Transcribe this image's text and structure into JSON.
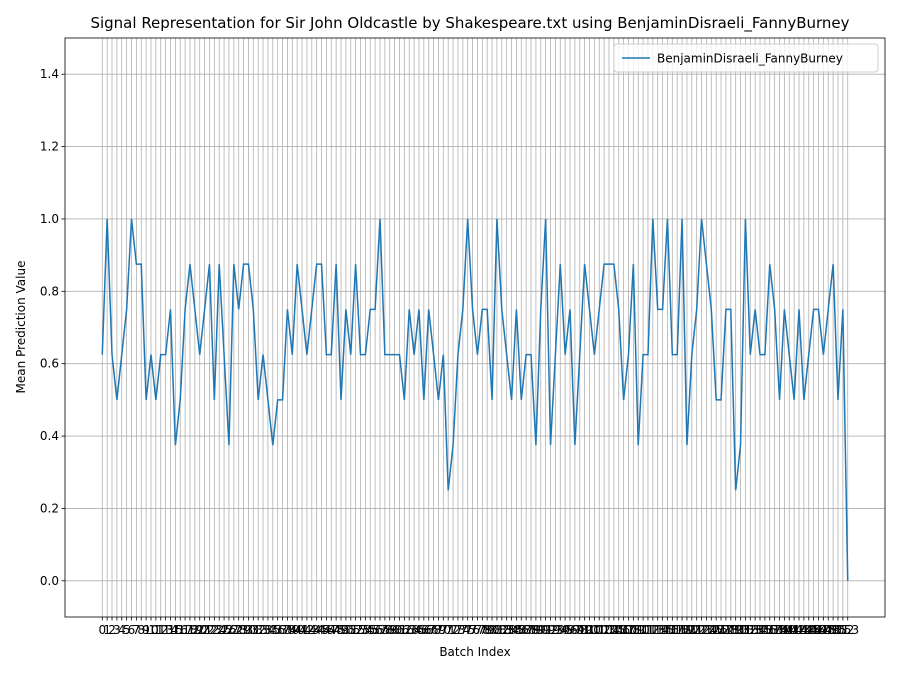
{
  "chart_data": {
    "type": "line",
    "title": "Signal Representation for Sir John Oldcastle by Shakespeare.txt using BenjaminDisraeli_FannyBurney",
    "xlabel": "Batch Index",
    "ylabel": "Mean Prediction Value",
    "x": [
      0,
      1,
      2,
      3,
      4,
      5,
      6,
      7,
      8,
      9,
      10,
      11,
      12,
      13,
      14,
      15,
      16,
      17,
      18,
      19,
      20,
      21,
      22,
      23,
      24,
      25,
      26,
      27,
      28,
      29,
      30,
      31,
      32,
      33,
      34,
      35,
      36,
      37,
      38,
      39,
      40,
      41,
      42,
      43,
      44,
      45,
      46,
      47,
      48,
      49,
      50,
      51,
      52,
      53,
      54,
      55,
      56,
      57,
      58,
      59,
      60,
      61,
      62,
      63,
      64,
      65,
      66,
      67,
      68,
      69,
      70,
      71,
      72,
      73,
      74,
      75,
      76,
      77,
      78,
      79,
      80,
      81,
      82,
      83,
      84,
      85,
      86,
      87,
      88,
      89,
      90,
      91,
      92,
      93,
      94,
      95,
      96,
      97,
      98,
      99,
      100,
      101,
      102,
      103,
      104,
      105,
      106,
      107,
      108,
      109,
      110,
      111,
      112,
      113,
      114,
      115,
      116,
      117,
      118,
      119,
      120,
      121,
      122,
      123,
      124,
      125,
      126,
      127,
      128,
      129,
      130,
      131,
      132,
      133,
      134,
      135,
      136,
      137,
      138,
      139,
      140,
      141,
      142,
      143,
      144,
      145,
      146,
      147,
      148,
      149,
      150,
      151,
      152,
      153
    ],
    "series": [
      {
        "name": "BenjaminDisraeli_FannyBurney",
        "color": "#1f77b4",
        "values": [
          0.625,
          1.0,
          0.625,
          0.5,
          0.625,
          0.75,
          1.0,
          0.875,
          0.875,
          0.5,
          0.625,
          0.5,
          0.625,
          0.625,
          0.75,
          0.375,
          0.5,
          0.75,
          0.875,
          0.75,
          0.625,
          0.75,
          0.875,
          0.5,
          0.875,
          0.625,
          0.375,
          0.875,
          0.75,
          0.875,
          0.875,
          0.75,
          0.5,
          0.625,
          0.5,
          0.375,
          0.5,
          0.5,
          0.75,
          0.625,
          0.875,
          0.75,
          0.625,
          0.75,
          0.875,
          0.875,
          0.625,
          0.625,
          0.875,
          0.5,
          0.75,
          0.625,
          0.875,
          0.625,
          0.625,
          0.75,
          0.75,
          1.0,
          0.625,
          0.625,
          0.625,
          0.625,
          0.5,
          0.75,
          0.625,
          0.75,
          0.5,
          0.75,
          0.625,
          0.5,
          0.625,
          0.25,
          0.375,
          0.625,
          0.75,
          1.0,
          0.75,
          0.625,
          0.75,
          0.75,
          0.5,
          1.0,
          0.75,
          0.625,
          0.5,
          0.75,
          0.5,
          0.625,
          0.625,
          0.375,
          0.75,
          1.0,
          0.375,
          0.625,
          0.875,
          0.625,
          0.75,
          0.375,
          0.625,
          0.875,
          0.75,
          0.625,
          0.75,
          0.875,
          0.875,
          0.875,
          0.75,
          0.5,
          0.625,
          0.875,
          0.375,
          0.625,
          0.625,
          1.0,
          0.75,
          0.75,
          1.0,
          0.625,
          0.625,
          1.0,
          0.375,
          0.625,
          0.75,
          1.0,
          0.875,
          0.75,
          0.5,
          0.5,
          0.75,
          0.75,
          0.25,
          0.375,
          1.0,
          0.625,
          0.75,
          0.625,
          0.625,
          0.875,
          0.75,
          0.5,
          0.75,
          0.625,
          0.5,
          0.75,
          0.5,
          0.625,
          0.75,
          0.75,
          0.625,
          0.75,
          0.875,
          0.5,
          0.75,
          0.0
        ]
      }
    ],
    "xlim": [
      -7.65,
      160.65
    ],
    "ylim": [
      -0.1,
      1.5
    ],
    "xticks": [
      0,
      1,
      2,
      3,
      4,
      5,
      6,
      7,
      8,
      9,
      10,
      11,
      12,
      13,
      14,
      15,
      16,
      17,
      18,
      19,
      20,
      21,
      22,
      23,
      24,
      25,
      26,
      27,
      28,
      29,
      30,
      31,
      32,
      33,
      34,
      35,
      36,
      37,
      38,
      39,
      40,
      41,
      42,
      43,
      44,
      45,
      46,
      47,
      48,
      49,
      50,
      51,
      52,
      53,
      54,
      55,
      56,
      57,
      58,
      59,
      60,
      61,
      62,
      63,
      64,
      65,
      66,
      67,
      68,
      69,
      70,
      71,
      72,
      73,
      74,
      75,
      76,
      77,
      78,
      79,
      80,
      81,
      82,
      83,
      84,
      85,
      86,
      87,
      88,
      89,
      90,
      91,
      92,
      93,
      94,
      95,
      96,
      97,
      98,
      99,
      100,
      101,
      102,
      103,
      104,
      105,
      106,
      107,
      108,
      109,
      110,
      111,
      112,
      113,
      114,
      115,
      116,
      117,
      118,
      119,
      120,
      121,
      122,
      123,
      124,
      125,
      126,
      127,
      128,
      129,
      130,
      131,
      132,
      133,
      134,
      135,
      136,
      137,
      138,
      139,
      140,
      141,
      142,
      143,
      144,
      145,
      146,
      147,
      148,
      149,
      150,
      151,
      152,
      153
    ],
    "yticks": [
      {
        "value": 0,
        "label": "0.0"
      },
      {
        "value": 0.2,
        "label": "0.2"
      },
      {
        "value": 0.4,
        "label": "0.4"
      },
      {
        "value": 0.6,
        "label": "0.6"
      },
      {
        "value": 0.8,
        "label": "0.8"
      },
      {
        "value": 1,
        "label": "1.0"
      },
      {
        "value": 1.2,
        "label": "1.2"
      },
      {
        "value": 1.4,
        "label": "1.4"
      }
    ],
    "grid": true,
    "legend": "upper right"
  }
}
